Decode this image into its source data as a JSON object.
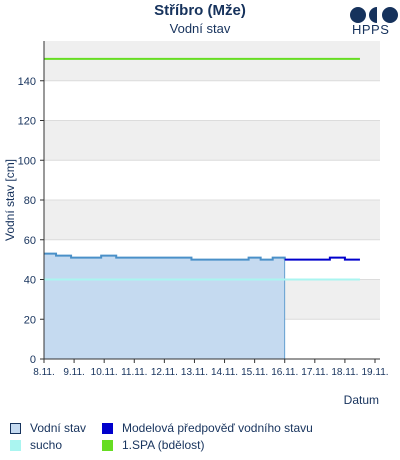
{
  "header": {
    "title": "Stříbro (Mže)",
    "subtitle": "Vodní stav",
    "logo_text": "HPPS"
  },
  "chart_data": {
    "type": "line",
    "xlabel": "Datum",
    "ylabel": "Vodní stav [cm]",
    "categories": [
      "8.11.",
      "9.11.",
      "10.11.",
      "11.11.",
      "12.11.",
      "13.11.",
      "14.11.",
      "15.11.",
      "16.11.",
      "17.11.",
      "18.11.",
      "19.11."
    ],
    "ylim": [
      0,
      160
    ],
    "yticks": [
      0,
      20,
      40,
      60,
      80,
      100,
      120,
      140
    ],
    "grid": true,
    "series": [
      {
        "name": "Vodní stav",
        "style": "area",
        "color": "#4a90c8",
        "fill": "#c5daf0",
        "x": [
          0,
          0.4,
          0.9,
          1.4,
          1.9,
          2.4,
          2.9,
          3.4,
          3.9,
          4.4,
          4.9,
          5.4,
          5.9,
          6.4,
          6.8,
          7.2,
          7.6,
          8.0
        ],
        "values": [
          53,
          52,
          51,
          51,
          52,
          51,
          51,
          51,
          51,
          51,
          50,
          50,
          50,
          50,
          51,
          50,
          51,
          50
        ]
      },
      {
        "name": "Modelová předpověď vodního stavu",
        "style": "line",
        "color": "#0000cc",
        "x": [
          8.0,
          8.5,
          9.0,
          9.5,
          10.0,
          10.5
        ],
        "values": [
          50,
          50,
          50,
          51,
          50,
          50
        ]
      },
      {
        "name": "sucho",
        "style": "hline",
        "color": "#aaf5f0",
        "x": [
          0,
          10.5
        ],
        "values": [
          40,
          40
        ]
      },
      {
        "name": "1.SPA (bdělost)",
        "style": "hline",
        "color": "#66dd22",
        "x": [
          0,
          10.5
        ],
        "values": [
          151,
          151
        ]
      }
    ]
  },
  "legend": [
    {
      "label": "Vodní stav",
      "color": "#c5daf0",
      "border": "#16325c"
    },
    {
      "label": "Modelová předpověď vodního stavu",
      "color": "#0000cc",
      "border": "#0000cc"
    },
    {
      "label": "sucho",
      "color": "#aaf5f0",
      "border": "#aaf5f0"
    },
    {
      "label": "1.SPA (bdělost)",
      "color": "#66dd22",
      "border": "#66dd22"
    }
  ]
}
